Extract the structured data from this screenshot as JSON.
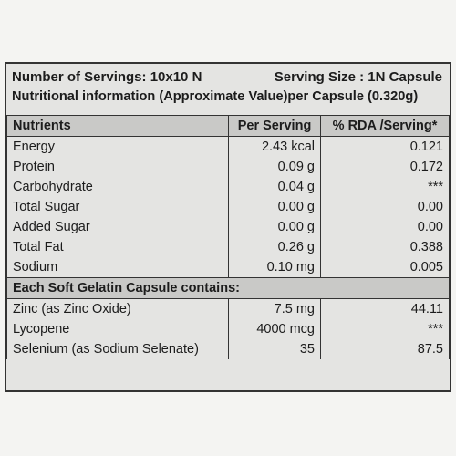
{
  "header": {
    "servings": "Number of Servings: 10x10 N",
    "serving_size": "Serving Size : 1N Capsule",
    "info": "Nutritional information (Approximate Value)per Capsule (0.320g)"
  },
  "table": {
    "columns": [
      "Nutrients",
      "Per Serving",
      "% RDA /Serving*"
    ],
    "rows": [
      [
        "Energy",
        "2.43 kcal",
        "0.121"
      ],
      [
        "Protein",
        "0.09 g",
        "0.172"
      ],
      [
        "Carbohydrate",
        "0.04 g",
        "***"
      ],
      [
        "Total Sugar",
        "0.00 g",
        "0.00"
      ],
      [
        "Added Sugar",
        "0.00 g",
        "0.00"
      ],
      [
        "Total Fat",
        "0.26 g",
        "0.388"
      ],
      [
        "Sodium",
        "0.10 mg",
        "0.005"
      ]
    ]
  },
  "capsule": {
    "title": "Each Soft Gelatin Capsule contains:",
    "rows": [
      [
        "Zinc (as Zinc Oxide)",
        "7.5 mg",
        "44.11"
      ],
      [
        "Lycopene",
        "4000 mcg",
        "***"
      ],
      [
        "Selenium (as Sodium Selenate)",
        "35",
        "87.5"
      ]
    ]
  }
}
